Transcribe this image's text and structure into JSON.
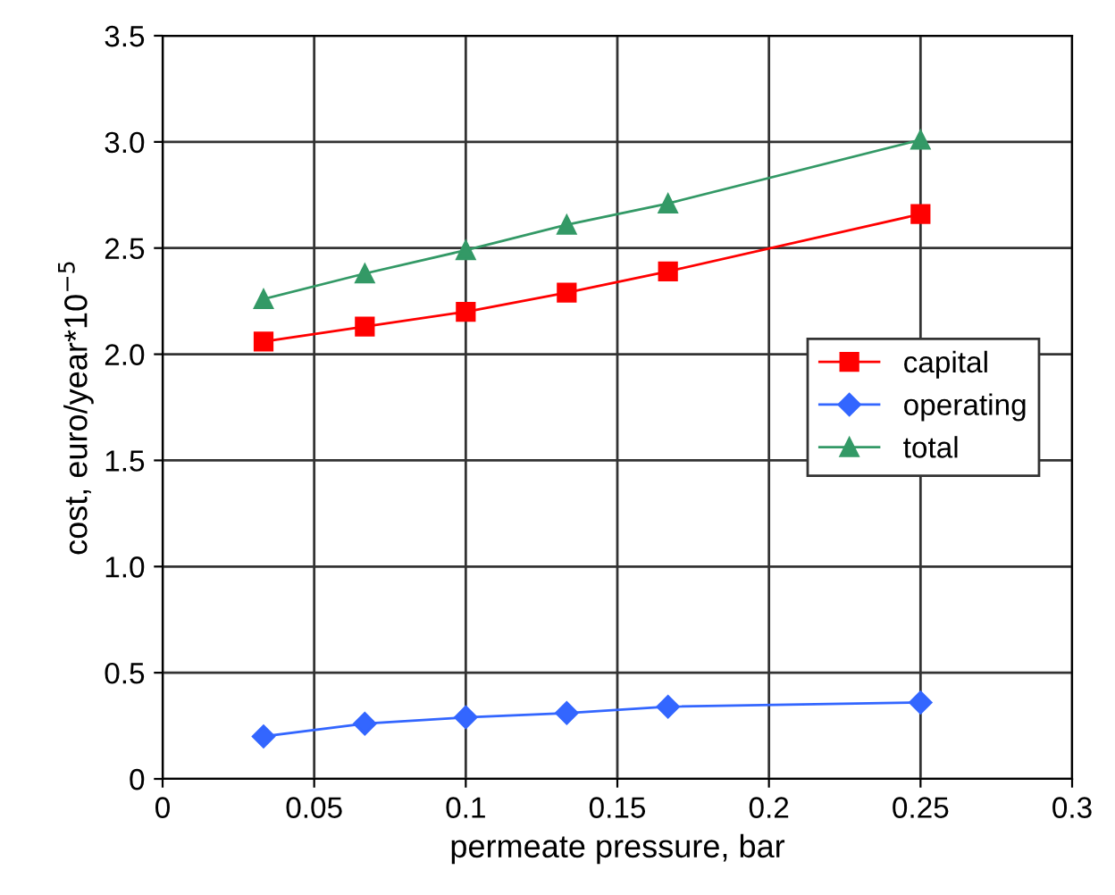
{
  "chart_data": {
    "type": "line",
    "xlabel": "permeate pressure, bar",
    "ylabel": "cost, euro/year*10$^{−5}$",
    "x": [
      0.0333,
      0.0667,
      0.1,
      0.1333,
      0.1667,
      0.25
    ],
    "series": [
      {
        "name": "capital",
        "color": "#ff0000",
        "marker": "square",
        "values": [
          2.06,
          2.13,
          2.2,
          2.29,
          2.39,
          2.66
        ]
      },
      {
        "name": "operating",
        "color": "#3366ff",
        "marker": "diamond",
        "values": [
          0.2,
          0.26,
          0.29,
          0.31,
          0.34,
          0.36
        ]
      },
      {
        "name": "total",
        "color": "#339966",
        "marker": "triangle",
        "values": [
          2.26,
          2.38,
          2.49,
          2.61,
          2.71,
          3.01
        ]
      }
    ],
    "xlim": [
      0,
      0.3
    ],
    "xticks": [
      0,
      0.05,
      0.1,
      0.15,
      0.2,
      0.25,
      0.3
    ],
    "ylim": [
      0,
      3.5
    ],
    "yticks": [
      {
        "value": 0,
        "label": "0"
      },
      {
        "value": 0.5,
        "label": "0.5"
      },
      {
        "value": 1,
        "label": "1.0"
      },
      {
        "value": 1.5,
        "label": "1.5"
      },
      {
        "value": 2,
        "label": "2.0"
      },
      {
        "value": 2.5,
        "label": "2.5"
      },
      {
        "value": 3,
        "label": "3.0"
      },
      {
        "value": 3.5,
        "label": "3.5"
      }
    ],
    "grid": true,
    "legend": "right"
  }
}
